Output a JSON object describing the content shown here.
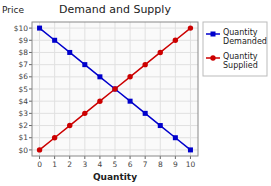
{
  "chart_data": {
    "type": "line",
    "title": "Demand and Supply",
    "xlabel": "Quantity",
    "ylabel": "Price",
    "x": [
      0,
      1,
      2,
      3,
      4,
      5,
      6,
      7,
      8,
      9,
      10
    ],
    "series": [
      {
        "name": "Quantity\nDemanded",
        "color": "#0000CC",
        "marker": "square",
        "values": [
          10,
          9,
          8,
          7,
          6,
          5,
          4,
          3,
          2,
          1,
          0
        ]
      },
      {
        "name": "Quantity\nSupplied",
        "color": "#CC0000",
        "marker": "circle",
        "values": [
          0,
          1,
          2,
          3,
          4,
          5,
          6,
          7,
          8,
          9,
          10
        ]
      }
    ],
    "xlim": [
      -0.5,
      10.5
    ],
    "ylim": [
      -0.5,
      10.5
    ],
    "xticks": [
      0,
      1,
      2,
      3,
      4,
      5,
      6,
      7,
      8,
      9,
      10
    ],
    "yticks": [
      {
        "value": 0,
        "label": "$0"
      },
      {
        "value": 1,
        "label": "$1"
      },
      {
        "value": 2,
        "label": "$2"
      },
      {
        "value": 3,
        "label": "$3"
      },
      {
        "value": 4,
        "label": "$4"
      },
      {
        "value": 5,
        "label": "$5"
      },
      {
        "value": 6,
        "label": "$6"
      },
      {
        "value": 7,
        "label": "$7"
      },
      {
        "value": 8,
        "label": "$8"
      },
      {
        "value": 9,
        "label": "$9"
      },
      {
        "value": 10,
        "label": "$10"
      }
    ],
    "grid": true,
    "legend": "right"
  }
}
